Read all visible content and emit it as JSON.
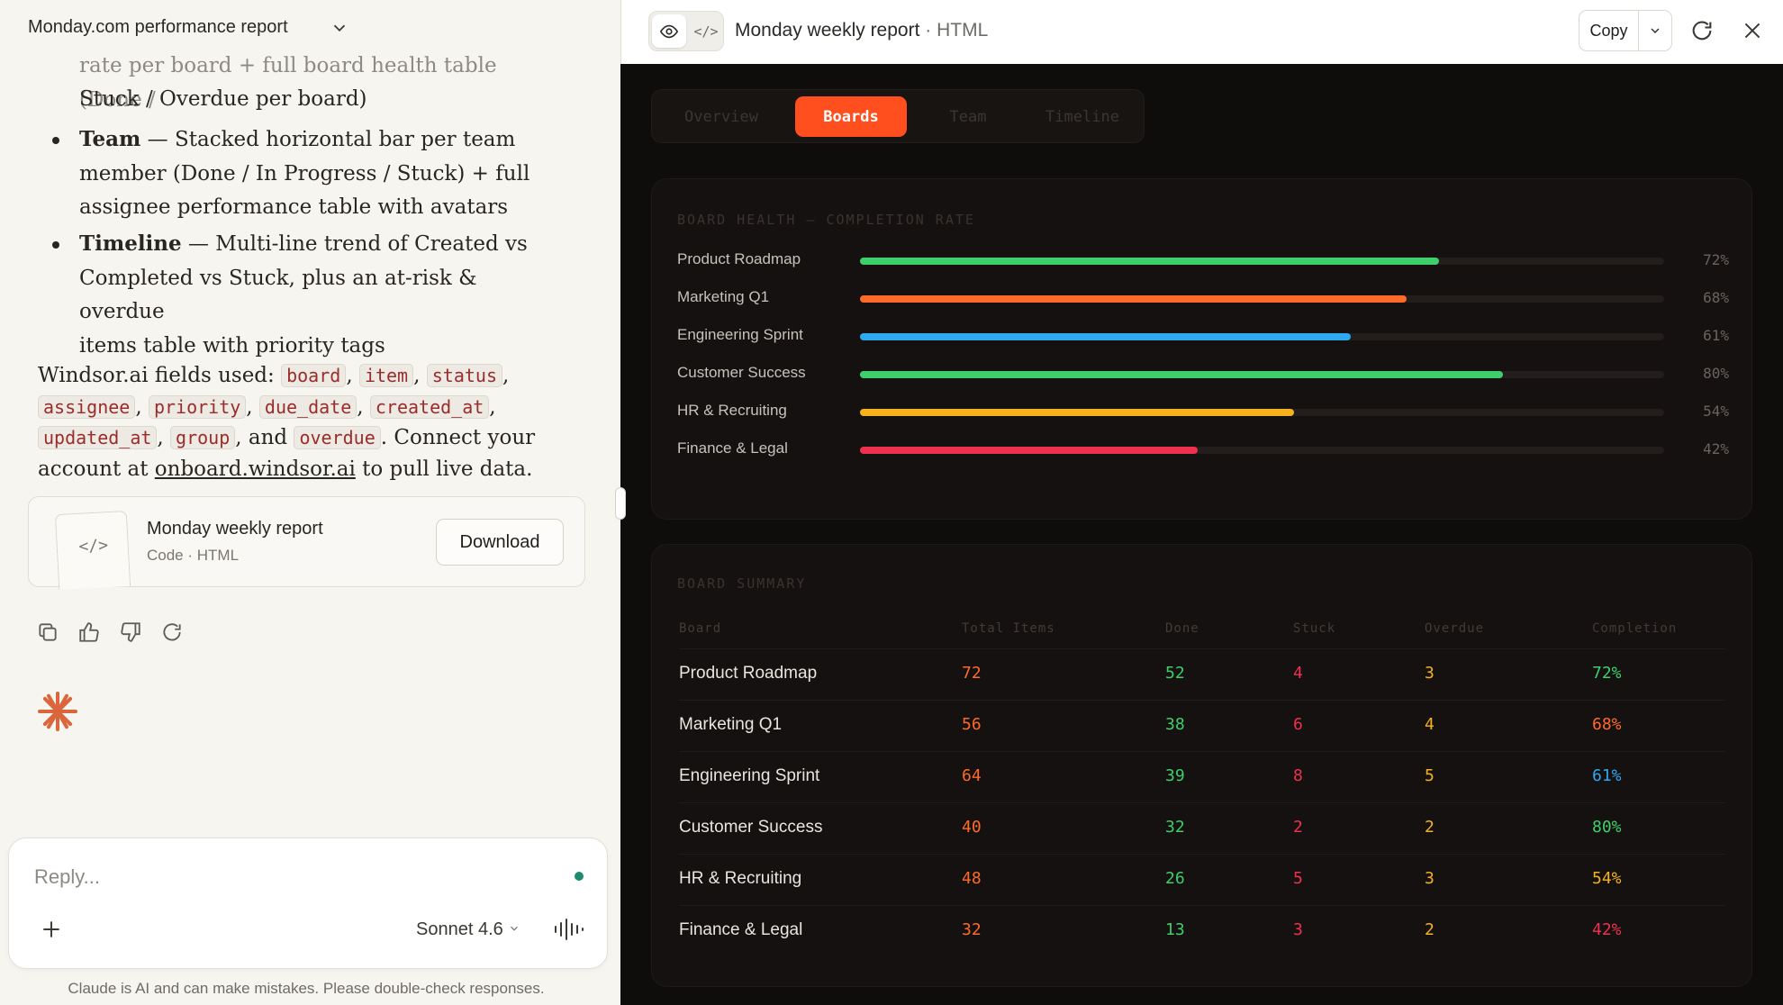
{
  "left": {
    "title": "Monday.com performance report",
    "bullets": [
      {
        "lines": [
          "rate per board + full board health table (Done /",
          "Stuck / Overdue per board)"
        ]
      },
      {
        "bold": "Team",
        "lines": [
          " — Stacked horizontal bar per team",
          "member (Done / In Progress / Stuck) + full",
          "assignee performance table with avatars"
        ]
      },
      {
        "bold": "Timeline",
        "lines": [
          " — Multi-line trend of Created vs",
          "Completed vs Stuck, plus an at-risk & overdue",
          "items table with priority tags"
        ]
      }
    ],
    "fields": {
      "intro": "Windsor.ai fields used: ",
      "codes": [
        "board",
        "item",
        "status",
        "assignee",
        "priority",
        "due_date",
        "created_at",
        "updated_at",
        "group",
        "overdue"
      ],
      "and": ", and ",
      "outro": ". Connect your account at ",
      "link": "onboard.windsor.ai",
      "end": " to pull live data."
    },
    "artifact": {
      "icon": "</>",
      "title": "Monday weekly report",
      "subtitle": "Code · HTML",
      "download_label": "Download"
    },
    "composer": {
      "placeholder": "Reply...",
      "model": "Sonnet 4.6"
    },
    "disclaimer": "Claude is AI and can make mistakes. Please double-check responses."
  },
  "right": {
    "title": "Monday weekly report",
    "title_sep": " · ",
    "title_type": "HTML",
    "copy_label": "Copy",
    "code_icon": "</>",
    "tabs": [
      "Overview",
      "Boards",
      "Team",
      "Timeline"
    ],
    "active_tab": "Boards",
    "health": {
      "title": "BOARD HEALTH — COMPLETION RATE",
      "rows": [
        {
          "label": "Product Roadmap",
          "value": 72,
          "pct": "72%",
          "color": "#3ecf6a"
        },
        {
          "label": "Marketing Q1",
          "value": 68,
          "pct": "68%",
          "color": "#ff6a2b"
        },
        {
          "label": "Engineering Sprint",
          "value": 61,
          "pct": "61%",
          "color": "#2fa8ee"
        },
        {
          "label": "Customer Success",
          "value": 80,
          "pct": "80%",
          "color": "#3ecf6a"
        },
        {
          "label": "HR & Recruiting",
          "value": 54,
          "pct": "54%",
          "color": "#f5b21d"
        },
        {
          "label": "Finance & Legal",
          "value": 42,
          "pct": "42%",
          "color": "#f0304f"
        }
      ]
    },
    "summary": {
      "title": "BOARD SUMMARY",
      "headers": [
        "Board",
        "Total Items",
        "Done",
        "Stuck",
        "Overdue",
        "Completion"
      ],
      "rows": [
        {
          "board": "Product Roadmap",
          "total": "72",
          "done": "52",
          "stuck": "4",
          "overdue": "3",
          "completion": "72%",
          "completion_color": "#3ecf6a"
        },
        {
          "board": "Marketing Q1",
          "total": "56",
          "done": "38",
          "stuck": "6",
          "overdue": "4",
          "completion": "68%",
          "completion_color": "#ff6a2b"
        },
        {
          "board": "Engineering Sprint",
          "total": "64",
          "done": "39",
          "stuck": "8",
          "overdue": "5",
          "completion": "61%",
          "completion_color": "#2fa8ee"
        },
        {
          "board": "Customer Success",
          "total": "40",
          "done": "32",
          "stuck": "2",
          "overdue": "2",
          "completion": "80%",
          "completion_color": "#3ecf6a"
        },
        {
          "board": "HR & Recruiting",
          "total": "48",
          "done": "26",
          "stuck": "5",
          "overdue": "3",
          "completion": "54%",
          "completion_color": "#f5b21d"
        },
        {
          "board": "Finance & Legal",
          "total": "32",
          "done": "13",
          "stuck": "3",
          "overdue": "2",
          "completion": "42%",
          "completion_color": "#f0304f"
        }
      ],
      "colors": {
        "total": "#ff6a2b",
        "done": "#3ecf6a",
        "stuck": "#f0304f",
        "overdue": "#f5b21d"
      }
    }
  },
  "icons": {
    "chevron": "chevron-down-icon",
    "copy": "copy-icon",
    "thumbs_up": "thumbs-up-icon",
    "thumbs_down": "thumbs-down-icon",
    "retry": "retry-icon",
    "spark": "claude-spark-icon",
    "plus": "plus-icon",
    "voice": "voice-icon",
    "eye": "eye-icon",
    "refresh": "refresh-icon",
    "close": "close-icon"
  }
}
